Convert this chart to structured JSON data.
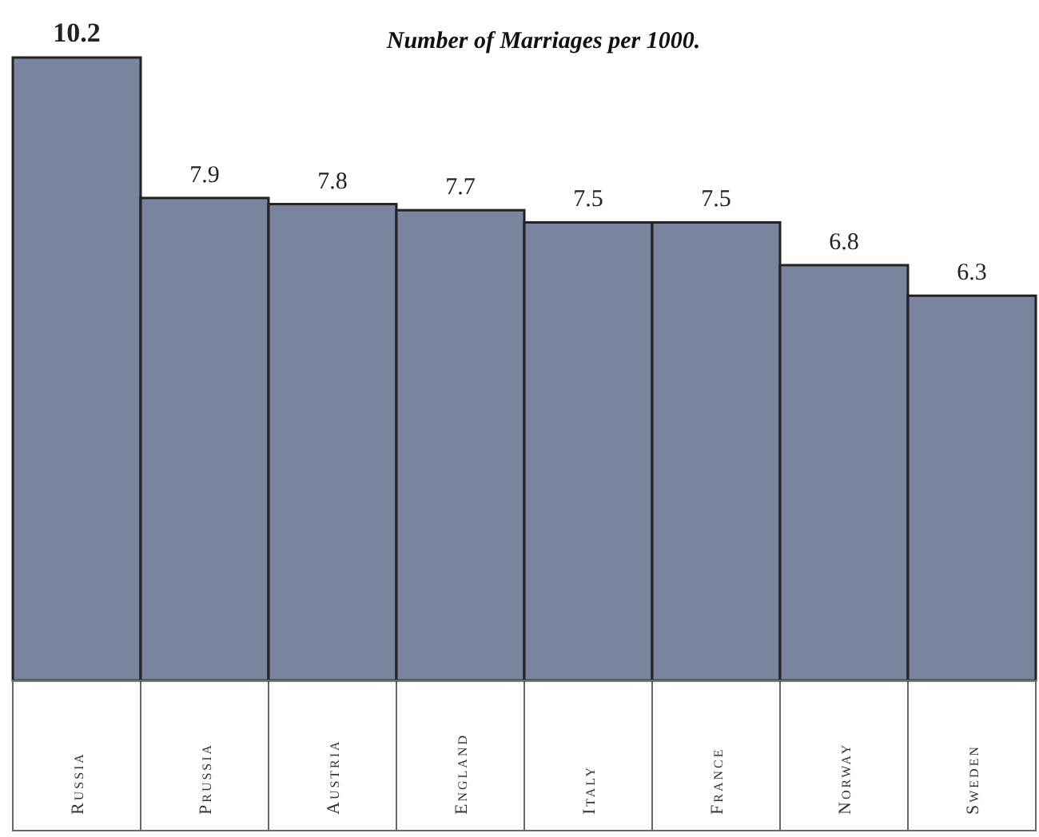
{
  "chart_data": {
    "type": "bar",
    "title": "Number of Marriages per 1000.",
    "categories": [
      "Russia",
      "Prussia",
      "Austria",
      "England",
      "Italy",
      "France",
      "Norway",
      "Sweden"
    ],
    "values": [
      10.2,
      7.9,
      7.8,
      7.7,
      7.5,
      7.5,
      6.8,
      6.3
    ],
    "color": "#7a849e",
    "data_labels": true
  }
}
